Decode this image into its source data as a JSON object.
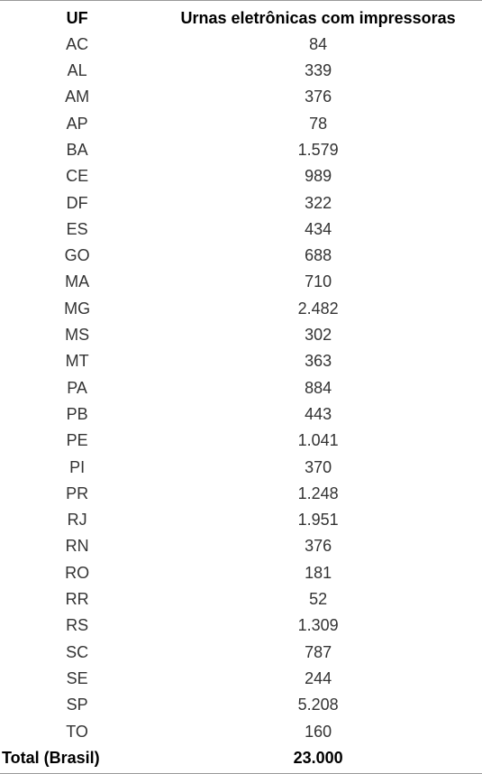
{
  "table": {
    "columns": [
      "UF",
      "Urnas eletrônicas com impressoras"
    ],
    "rows": [
      [
        "AC",
        "84"
      ],
      [
        "AL",
        "339"
      ],
      [
        "AM",
        "376"
      ],
      [
        "AP",
        "78"
      ],
      [
        "BA",
        "1.579"
      ],
      [
        "CE",
        "989"
      ],
      [
        "DF",
        "322"
      ],
      [
        "ES",
        "434"
      ],
      [
        "GO",
        "688"
      ],
      [
        "MA",
        "710"
      ],
      [
        "MG",
        "2.482"
      ],
      [
        "MS",
        "302"
      ],
      [
        "MT",
        "363"
      ],
      [
        "PA",
        "884"
      ],
      [
        "PB",
        "443"
      ],
      [
        "PE",
        "1.041"
      ],
      [
        "PI",
        "370"
      ],
      [
        "PR",
        "1.248"
      ],
      [
        "RJ",
        "1.951"
      ],
      [
        "RN",
        "376"
      ],
      [
        "RO",
        "181"
      ],
      [
        "RR",
        "52"
      ],
      [
        "RS",
        "1.309"
      ],
      [
        "SC",
        "787"
      ],
      [
        "SE",
        "244"
      ],
      [
        "SP",
        "5.208"
      ],
      [
        "TO",
        "160"
      ]
    ],
    "total": {
      "label": "Total (Brasil)",
      "value": "23.000"
    },
    "style": {
      "header_fontsize": 18,
      "body_fontsize": 18,
      "header_color": "#000000",
      "body_color": "#333333",
      "border_color": "#999999",
      "background_color": "#ffffff",
      "col_widths_pct": [
        32,
        68
      ],
      "total_bold": true
    }
  }
}
